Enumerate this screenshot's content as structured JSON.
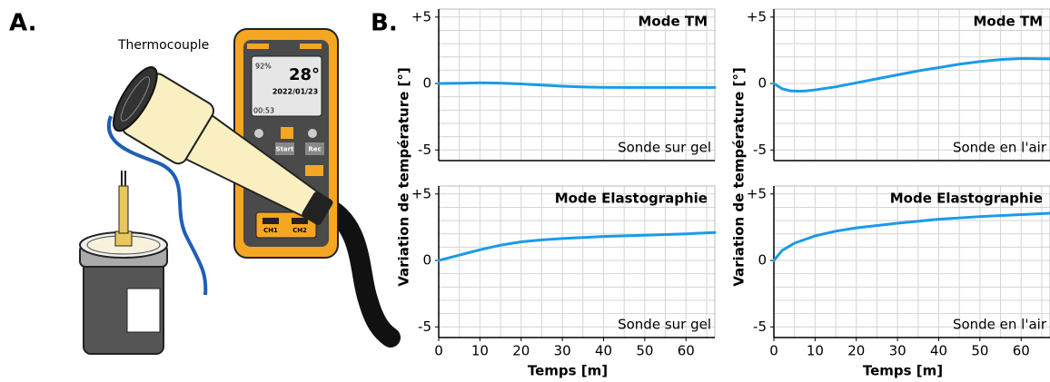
{
  "figure": {
    "panel_a": "A.",
    "panel_b": "B.",
    "thermocouple": "Thermocouple",
    "device": {
      "battery": "92%",
      "temperature": "28°",
      "date": "2022/01/23",
      "time": "00:53",
      "start": "Start",
      "rec": "Rec",
      "ch1": "CH1",
      "ch2": "CH2"
    }
  },
  "chart_data": [
    {
      "type": "line",
      "title": "Mode TM",
      "annotation": "Sonde sur gel",
      "ylabel": "Variation de température [°]",
      "x": [
        0,
        5,
        10,
        15,
        20,
        25,
        30,
        35,
        40,
        45,
        50,
        55,
        60,
        67
      ],
      "series": [
        {
          "color": "#1a9be8",
          "values": [
            0,
            0.02,
            0.05,
            0.03,
            -0.03,
            -0.12,
            -0.2,
            -0.26,
            -0.29,
            -0.3,
            -0.3,
            -0.3,
            -0.3,
            -0.3
          ]
        }
      ],
      "xlim": [
        0,
        67
      ],
      "ylim": [
        -5.8,
        5.6
      ],
      "yticks": [
        {
          "value": 5,
          "label": "+5"
        },
        0,
        -5
      ],
      "x_grid": [
        0,
        5,
        10,
        15,
        20,
        25,
        30,
        35,
        40,
        45,
        50,
        55,
        60,
        65
      ],
      "y_grid": [
        -5,
        -4,
        -3,
        -2,
        -1,
        0,
        1,
        2,
        3,
        4,
        5
      ]
    },
    {
      "type": "line",
      "title": "Mode TM",
      "annotation": "Sonde en l'air",
      "ylabel": "Variation de température [°]",
      "x": [
        0,
        2,
        4,
        6,
        8,
        10,
        15,
        20,
        25,
        30,
        35,
        40,
        45,
        50,
        55,
        60,
        67
      ],
      "series": [
        {
          "color": "#1a9be8",
          "values": [
            0,
            -0.4,
            -0.55,
            -0.58,
            -0.55,
            -0.48,
            -0.25,
            0.05,
            0.35,
            0.65,
            0.95,
            1.2,
            1.45,
            1.65,
            1.8,
            1.88,
            1.85
          ]
        }
      ],
      "xlim": [
        0,
        67
      ],
      "ylim": [
        -5.8,
        5.6
      ],
      "yticks": [
        {
          "value": 5,
          "label": "+5"
        },
        0,
        -5
      ],
      "x_grid": [
        0,
        5,
        10,
        15,
        20,
        25,
        30,
        35,
        40,
        45,
        50,
        55,
        60,
        65
      ],
      "y_grid": [
        -5,
        -4,
        -3,
        -2,
        -1,
        0,
        1,
        2,
        3,
        4,
        5
      ]
    },
    {
      "type": "line",
      "title": "Mode Elastographie",
      "annotation": "Sonde sur gel",
      "xlabel": "Temps [m]",
      "x": [
        0,
        5,
        10,
        15,
        20,
        25,
        30,
        40,
        50,
        60,
        67
      ],
      "series": [
        {
          "color": "#1a9be8",
          "values": [
            0,
            0.4,
            0.8,
            1.15,
            1.4,
            1.55,
            1.65,
            1.8,
            1.9,
            2.0,
            2.1
          ]
        }
      ],
      "xlim": [
        0,
        67
      ],
      "ylim": [
        -5.8,
        5.6
      ],
      "xticks": [
        0,
        10,
        20,
        30,
        40,
        50,
        60
      ],
      "yticks": [
        {
          "value": 5,
          "label": "+5"
        },
        0,
        -5
      ],
      "x_grid": [
        0,
        5,
        10,
        15,
        20,
        25,
        30,
        35,
        40,
        45,
        50,
        55,
        60,
        65
      ],
      "y_grid": [
        -5,
        -4,
        -3,
        -2,
        -1,
        0,
        1,
        2,
        3,
        4,
        5
      ]
    },
    {
      "type": "line",
      "title": "Mode Elastographie",
      "annotation": "Sonde en l'air",
      "xlabel": "Temps [m]",
      "x": [
        0,
        2,
        5,
        10,
        15,
        20,
        30,
        40,
        50,
        60,
        67
      ],
      "series": [
        {
          "color": "#1a9be8",
          "values": [
            0,
            0.75,
            1.3,
            1.85,
            2.2,
            2.45,
            2.8,
            3.1,
            3.3,
            3.45,
            3.55
          ]
        }
      ],
      "xlim": [
        0,
        67
      ],
      "ylim": [
        -5.8,
        5.6
      ],
      "xticks": [
        0,
        10,
        20,
        30,
        40,
        50,
        60
      ],
      "yticks": [
        {
          "value": 5,
          "label": "+5"
        },
        0,
        -5
      ],
      "x_grid": [
        0,
        5,
        10,
        15,
        20,
        25,
        30,
        35,
        40,
        45,
        50,
        55,
        60,
        65
      ],
      "y_grid": [
        -5,
        -4,
        -3,
        -2,
        -1,
        0,
        1,
        2,
        3,
        4,
        5
      ]
    }
  ]
}
